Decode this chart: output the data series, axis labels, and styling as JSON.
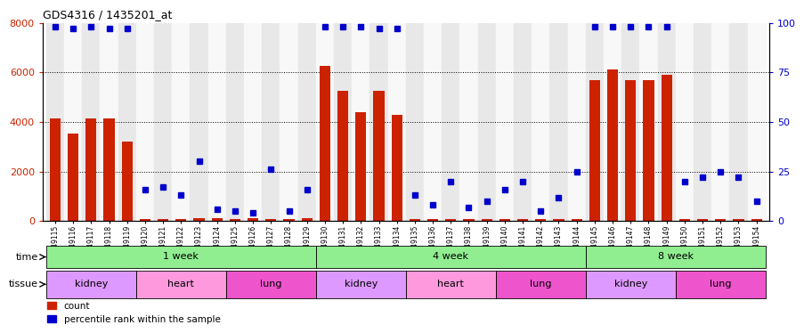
{
  "title": "GDS4316 / 1435201_at",
  "samples": [
    "GSM949115",
    "GSM949116",
    "GSM949117",
    "GSM949118",
    "GSM949119",
    "GSM949120",
    "GSM949121",
    "GSM949122",
    "GSM949123",
    "GSM949124",
    "GSM949125",
    "GSM949126",
    "GSM949127",
    "GSM949128",
    "GSM949129",
    "GSM949130",
    "GSM949131",
    "GSM949132",
    "GSM949133",
    "GSM949134",
    "GSM949135",
    "GSM949136",
    "GSM949137",
    "GSM949138",
    "GSM949139",
    "GSM949140",
    "GSM949141",
    "GSM949142",
    "GSM949143",
    "GSM949144",
    "GSM949145",
    "GSM949146",
    "GSM949147",
    "GSM949148",
    "GSM949149",
    "GSM949150",
    "GSM949151",
    "GSM949152",
    "GSM949153",
    "GSM949154"
  ],
  "counts": [
    4150,
    3520,
    4150,
    4150,
    3200,
    80,
    80,
    80,
    100,
    100,
    80,
    100,
    80,
    80,
    100,
    6250,
    5250,
    4400,
    5250,
    4300,
    80,
    80,
    80,
    80,
    80,
    80,
    80,
    80,
    80,
    80,
    5700,
    6100,
    5700,
    5700,
    5900,
    80,
    80,
    80,
    80,
    80
  ],
  "percentiles": [
    98,
    97,
    98,
    97,
    97,
    16,
    17,
    13,
    30,
    6,
    5,
    4,
    26,
    5,
    16,
    98,
    98,
    98,
    97,
    97,
    13,
    8,
    20,
    7,
    10,
    16,
    20,
    5,
    12,
    25,
    98,
    98,
    98,
    98,
    98,
    20,
    22,
    25,
    22,
    10
  ],
  "time_groups": [
    {
      "label": "1 week",
      "start": 0,
      "end": 15,
      "color": "#90ee90"
    },
    {
      "label": "4 week",
      "start": 15,
      "end": 30,
      "color": "#90ee90"
    },
    {
      "label": "8 week",
      "start": 30,
      "end": 40,
      "color": "#90ee90"
    }
  ],
  "tissue_groups": [
    {
      "label": "kidney",
      "start": 0,
      "end": 5,
      "color": "#dd99ff"
    },
    {
      "label": "heart",
      "start": 5,
      "end": 10,
      "color": "#ff99dd"
    },
    {
      "label": "lung",
      "start": 10,
      "end": 15,
      "color": "#ee55cc"
    },
    {
      "label": "kidney",
      "start": 15,
      "end": 20,
      "color": "#dd99ff"
    },
    {
      "label": "heart",
      "start": 20,
      "end": 25,
      "color": "#ff99dd"
    },
    {
      "label": "lung",
      "start": 25,
      "end": 30,
      "color": "#ee55cc"
    },
    {
      "label": "kidney",
      "start": 30,
      "end": 35,
      "color": "#dd99ff"
    },
    {
      "label": "lung",
      "start": 35,
      "end": 40,
      "color": "#ee55cc"
    }
  ],
  "bar_color": "#cc2200",
  "dot_color": "#0000cc",
  "ylim_left": [
    0,
    8000
  ],
  "ylim_right": [
    0,
    100
  ],
  "yticks_left": [
    0,
    2000,
    4000,
    6000,
    8000
  ],
  "yticks_right": [
    0,
    25,
    50,
    75,
    100
  ],
  "grid_levels": [
    2000,
    4000,
    6000
  ],
  "bg_color": "#ffffff",
  "col_bg_even": "#e8e8e8",
  "col_bg_odd": "#f8f8f8"
}
